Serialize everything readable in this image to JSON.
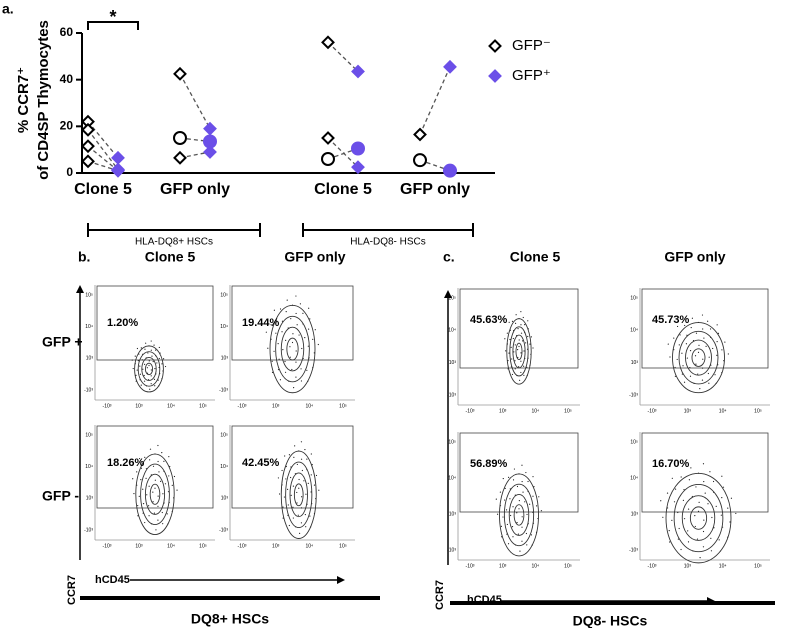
{
  "chart_data": {
    "type": "paired-scatter",
    "panel_label": "a.",
    "y_label": [
      "% CCR7⁺",
      "of CD4SP Thymocytes"
    ],
    "ylim": [
      0,
      60
    ],
    "yticks": [
      0,
      20,
      40,
      60
    ],
    "categories": [
      "Clone 5",
      "GFP only",
      "Clone 5",
      "GFP only"
    ],
    "groups": [
      "HLA-DQ8+ HSCs",
      "HLA-DQ8- HSCs"
    ],
    "significance": "*",
    "point_category": [
      0,
      0,
      0,
      0,
      1,
      1,
      1,
      2,
      2,
      2,
      3,
      3
    ],
    "point_marker": [
      "diamond",
      "diamond",
      "diamond",
      "diamond",
      "diamond",
      "circle",
      "diamond",
      "diamond",
      "diamond",
      "circle",
      "diamond",
      "circle"
    ],
    "series": [
      {
        "name": "GFP⁻",
        "color": "#000000",
        "values": [
          22,
          18.5,
          11.5,
          5,
          42.5,
          15,
          6.5,
          56,
          15,
          6,
          16.5,
          5.5
        ]
      },
      {
        "name": "GFP⁺",
        "color": "#6b4fe8",
        "values": [
          6.5,
          1.5,
          1,
          1,
          19,
          13.5,
          9,
          43.5,
          2.5,
          10.5,
          45.5,
          1
        ]
      }
    ]
  },
  "flow_panels": [
    {
      "label": "b.",
      "columns": [
        "Clone 5",
        "GFP only"
      ],
      "rows": [
        "GFP +",
        "GFP -"
      ],
      "y_axis": "CCR7",
      "x_axis": "hCD45",
      "footer": "DQ8+ HSCs",
      "percentages": [
        [
          "1.20%",
          "19.44%"
        ],
        [
          "18.26%",
          "42.45%"
        ]
      ]
    },
    {
      "label": "c.",
      "columns": [
        "Clone 5",
        "GFP only"
      ],
      "y_axis": "CCR7",
      "x_axis": "hCD45",
      "footer": "DQ8- HSCs",
      "percentages": [
        [
          "45.63%",
          "45.73%"
        ],
        [
          "56.89%",
          "16.70%"
        ]
      ]
    }
  ],
  "flow_ticks": {
    "x": [
      "-10³",
      "10³",
      "10⁴",
      "10⁵"
    ],
    "y": [
      "10⁵",
      "10⁴",
      "10³",
      "-10³"
    ]
  }
}
